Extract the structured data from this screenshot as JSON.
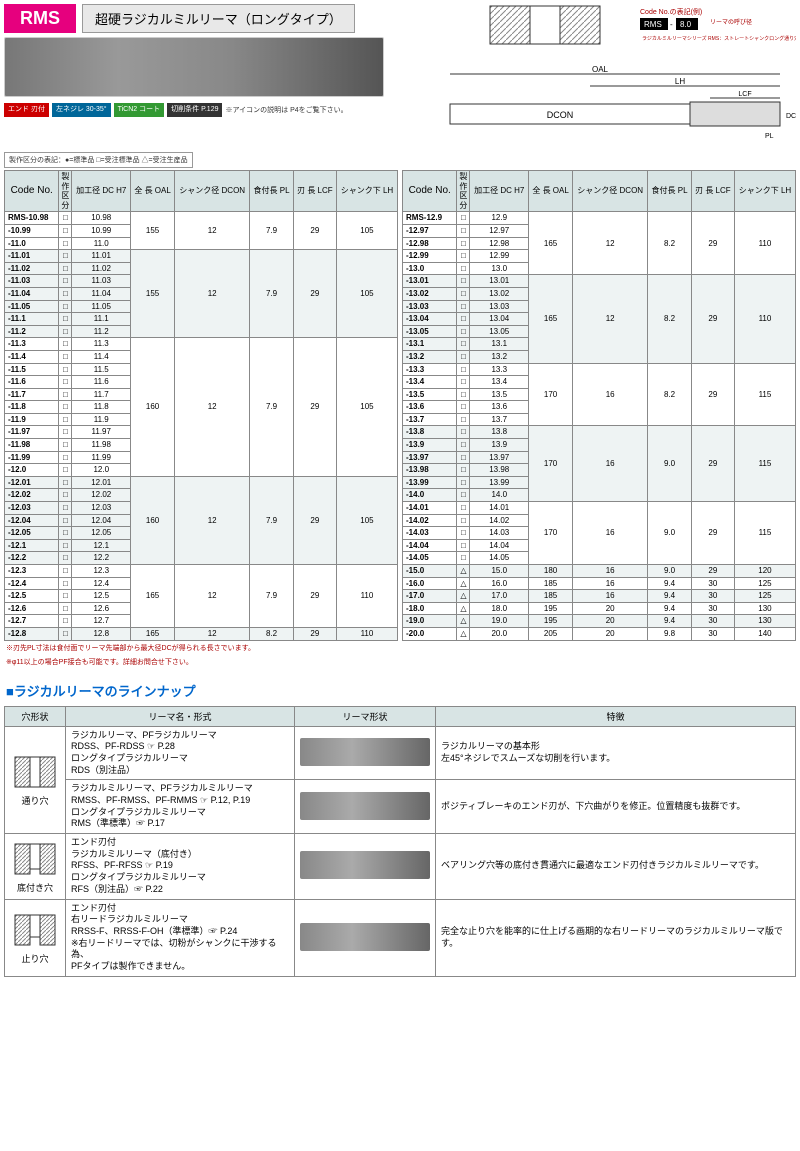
{
  "header": {
    "product_code": "RMS",
    "jp_title": "超硬ラジカルミルリーマ（ロングタイプ）",
    "badges": [
      {
        "label": "エンド\n刃付",
        "color": "#c00"
      },
      {
        "label": "左ネジレ\n30-35°",
        "color": "#069"
      },
      {
        "label": "TiCN2\nコート",
        "color": "#393"
      },
      {
        "label": "切削条件\nP.129",
        "color": "#333"
      }
    ],
    "badge_note": "※アイコンの説明は\nP4をご覧下さい。",
    "code_example_label": "Code No.の表記(例)",
    "code_example_rms": "RMS",
    "code_example_val": "8.0",
    "code_example_note1": "リーマの呼び径",
    "code_example_note2": "ラジカルミルリーマシリーズ\nRMS：ストレートシャンクロング通り穴用",
    "diagram_labels": {
      "oal": "OAL",
      "lh": "LH",
      "lcf": "LCF",
      "dcon": "DCON",
      "dc": "DC",
      "pl": "PL"
    }
  },
  "legend": "製作区分の表記：●=標準品 □=受注標準品 △=受注生産品",
  "table_headers": {
    "code": "Code No.",
    "kubun": "製作\n区分",
    "dc": "加工径\nDC H7",
    "oal": "全 長\nOAL",
    "dcon": "シャンク径\nDCON",
    "pl": "食付長\nPL",
    "lcf": "刃 長\nLCF",
    "lh": "シャンク下\nLH"
  },
  "table_left": [
    {
      "code": "RMS-10.98",
      "m": "□",
      "dc": "10.98",
      "g": 0
    },
    {
      "code": "-10.99",
      "m": "□",
      "dc": "10.99",
      "g": 0
    },
    {
      "code": "-11.0",
      "m": "□",
      "dc": "11.0",
      "g": 0
    },
    {
      "code": "-11.01",
      "m": "□",
      "dc": "11.01",
      "g": 1
    },
    {
      "code": "-11.02",
      "m": "□",
      "dc": "11.02",
      "g": 1
    },
    {
      "code": "-11.03",
      "m": "□",
      "dc": "11.03",
      "g": 1
    },
    {
      "code": "-11.04",
      "m": "□",
      "dc": "11.04",
      "g": 1
    },
    {
      "code": "-11.05",
      "m": "□",
      "dc": "11.05",
      "g": 1
    },
    {
      "code": "-11.1",
      "m": "□",
      "dc": "11.1",
      "g": 1
    },
    {
      "code": "-11.2",
      "m": "□",
      "dc": "11.2",
      "g": 1
    },
    {
      "code": "-11.3",
      "m": "□",
      "dc": "11.3",
      "g": 2
    },
    {
      "code": "-11.4",
      "m": "□",
      "dc": "11.4",
      "g": 2
    },
    {
      "code": "-11.5",
      "m": "□",
      "dc": "11.5",
      "g": 2
    },
    {
      "code": "-11.6",
      "m": "□",
      "dc": "11.6",
      "g": 2
    },
    {
      "code": "-11.7",
      "m": "□",
      "dc": "11.7",
      "g": 2
    },
    {
      "code": "-11.8",
      "m": "□",
      "dc": "11.8",
      "g": 2
    },
    {
      "code": "-11.9",
      "m": "□",
      "dc": "11.9",
      "g": 2
    },
    {
      "code": "-11.97",
      "m": "□",
      "dc": "11.97",
      "g": 2
    },
    {
      "code": "-11.98",
      "m": "□",
      "dc": "11.98",
      "g": 2
    },
    {
      "code": "-11.99",
      "m": "□",
      "dc": "11.99",
      "g": 2
    },
    {
      "code": "-12.0",
      "m": "□",
      "dc": "12.0",
      "g": 2
    },
    {
      "code": "-12.01",
      "m": "□",
      "dc": "12.01",
      "g": 3
    },
    {
      "code": "-12.02",
      "m": "□",
      "dc": "12.02",
      "g": 3
    },
    {
      "code": "-12.03",
      "m": "□",
      "dc": "12.03",
      "g": 3
    },
    {
      "code": "-12.04",
      "m": "□",
      "dc": "12.04",
      "g": 3
    },
    {
      "code": "-12.05",
      "m": "□",
      "dc": "12.05",
      "g": 3
    },
    {
      "code": "-12.1",
      "m": "□",
      "dc": "12.1",
      "g": 3
    },
    {
      "code": "-12.2",
      "m": "□",
      "dc": "12.2",
      "g": 3
    },
    {
      "code": "-12.3",
      "m": "□",
      "dc": "12.3",
      "g": 4
    },
    {
      "code": "-12.4",
      "m": "□",
      "dc": "12.4",
      "g": 4
    },
    {
      "code": "-12.5",
      "m": "□",
      "dc": "12.5",
      "g": 4
    },
    {
      "code": "-12.6",
      "m": "□",
      "dc": "12.6",
      "g": 4
    },
    {
      "code": "-12.7",
      "m": "□",
      "dc": "12.7",
      "g": 4
    },
    {
      "code": "-12.8",
      "m": "□",
      "dc": "12.8",
      "g": 5
    }
  ],
  "groups_left": [
    {
      "oal": "155",
      "dcon": "12",
      "pl": "7.9",
      "lcf": "29",
      "lh": "105",
      "span": 3,
      "alt": false
    },
    {
      "oal": "155",
      "dcon": "12",
      "pl": "7.9",
      "lcf": "29",
      "lh": "105",
      "span": 7,
      "alt": true
    },
    {
      "oal": "160",
      "dcon": "12",
      "pl": "7.9",
      "lcf": "29",
      "lh": "105",
      "span": 11,
      "alt": false
    },
    {
      "oal": "160",
      "dcon": "12",
      "pl": "7.9",
      "lcf": "29",
      "lh": "105",
      "span": 7,
      "alt": true
    },
    {
      "oal": "165",
      "dcon": "12",
      "pl": "7.9",
      "lcf": "29",
      "lh": "110",
      "span": 5,
      "alt": false
    },
    {
      "oal": "165",
      "dcon": "12",
      "pl": "8.2",
      "lcf": "29",
      "lh": "110",
      "span": 1,
      "alt": true
    }
  ],
  "table_right": [
    {
      "code": "RMS-12.9",
      "m": "□",
      "dc": "12.9",
      "g": 0
    },
    {
      "code": "-12.97",
      "m": "□",
      "dc": "12.97",
      "g": 0
    },
    {
      "code": "-12.98",
      "m": "□",
      "dc": "12.98",
      "g": 0
    },
    {
      "code": "-12.99",
      "m": "□",
      "dc": "12.99",
      "g": 0
    },
    {
      "code": "-13.0",
      "m": "□",
      "dc": "13.0",
      "g": 0
    },
    {
      "code": "-13.01",
      "m": "□",
      "dc": "13.01",
      "g": 1
    },
    {
      "code": "-13.02",
      "m": "□",
      "dc": "13.02",
      "g": 1
    },
    {
      "code": "-13.03",
      "m": "□",
      "dc": "13.03",
      "g": 1
    },
    {
      "code": "-13.04",
      "m": "□",
      "dc": "13.04",
      "g": 1
    },
    {
      "code": "-13.05",
      "m": "□",
      "dc": "13.05",
      "g": 1
    },
    {
      "code": "-13.1",
      "m": "□",
      "dc": "13.1",
      "g": 1
    },
    {
      "code": "-13.2",
      "m": "□",
      "dc": "13.2",
      "g": 1
    },
    {
      "code": "-13.3",
      "m": "□",
      "dc": "13.3",
      "g": 2
    },
    {
      "code": "-13.4",
      "m": "□",
      "dc": "13.4",
      "g": 2
    },
    {
      "code": "-13.5",
      "m": "□",
      "dc": "13.5",
      "g": 2
    },
    {
      "code": "-13.6",
      "m": "□",
      "dc": "13.6",
      "g": 2
    },
    {
      "code": "-13.7",
      "m": "□",
      "dc": "13.7",
      "g": 2
    },
    {
      "code": "-13.8",
      "m": "□",
      "dc": "13.8",
      "g": 3
    },
    {
      "code": "-13.9",
      "m": "□",
      "dc": "13.9",
      "g": 3
    },
    {
      "code": "-13.97",
      "m": "□",
      "dc": "13.97",
      "g": 3
    },
    {
      "code": "-13.98",
      "m": "□",
      "dc": "13.98",
      "g": 3
    },
    {
      "code": "-13.99",
      "m": "□",
      "dc": "13.99",
      "g": 3
    },
    {
      "code": "-14.0",
      "m": "□",
      "dc": "14.0",
      "g": 3
    },
    {
      "code": "-14.01",
      "m": "□",
      "dc": "14.01",
      "g": 4
    },
    {
      "code": "-14.02",
      "m": "□",
      "dc": "14.02",
      "g": 4
    },
    {
      "code": "-14.03",
      "m": "□",
      "dc": "14.03",
      "g": 4
    },
    {
      "code": "-14.04",
      "m": "□",
      "dc": "14.04",
      "g": 4
    },
    {
      "code": "-14.05",
      "m": "□",
      "dc": "14.05",
      "g": 4
    },
    {
      "code": "-15.0",
      "m": "△",
      "dc": "15.0",
      "g": 5
    },
    {
      "code": "-16.0",
      "m": "△",
      "dc": "16.0",
      "g": 6
    },
    {
      "code": "-17.0",
      "m": "△",
      "dc": "17.0",
      "g": 7
    },
    {
      "code": "-18.0",
      "m": "△",
      "dc": "18.0",
      "g": 8
    },
    {
      "code": "-19.0",
      "m": "△",
      "dc": "19.0",
      "g": 9
    },
    {
      "code": "-20.0",
      "m": "△",
      "dc": "20.0",
      "g": 10
    }
  ],
  "groups_right": [
    {
      "oal": "165",
      "dcon": "12",
      "pl": "8.2",
      "lcf": "29",
      "lh": "110",
      "span": 5,
      "alt": false
    },
    {
      "oal": "165",
      "dcon": "12",
      "pl": "8.2",
      "lcf": "29",
      "lh": "110",
      "span": 7,
      "alt": true
    },
    {
      "oal": "170",
      "dcon": "16",
      "pl": "8.2",
      "lcf": "29",
      "lh": "115",
      "span": 5,
      "alt": false
    },
    {
      "oal": "170",
      "dcon": "16",
      "pl": "9.0",
      "lcf": "29",
      "lh": "115",
      "span": 6,
      "alt": true
    },
    {
      "oal": "170",
      "dcon": "16",
      "pl": "9.0",
      "lcf": "29",
      "lh": "115",
      "span": 5,
      "alt": false
    },
    {
      "oal": "180",
      "dcon": "16",
      "pl": "9.0",
      "lcf": "29",
      "lh": "120",
      "span": 1,
      "alt": true
    },
    {
      "oal": "185",
      "dcon": "16",
      "pl": "9.4",
      "lcf": "30",
      "lh": "125",
      "span": 1,
      "alt": false
    },
    {
      "oal": "185",
      "dcon": "16",
      "pl": "9.4",
      "lcf": "30",
      "lh": "125",
      "span": 1,
      "alt": true
    },
    {
      "oal": "195",
      "dcon": "20",
      "pl": "9.4",
      "lcf": "30",
      "lh": "130",
      "span": 1,
      "alt": false
    },
    {
      "oal": "195",
      "dcon": "20",
      "pl": "9.4",
      "lcf": "30",
      "lh": "130",
      "span": 1,
      "alt": true
    },
    {
      "oal": "205",
      "dcon": "20",
      "pl": "9.8",
      "lcf": "30",
      "lh": "140",
      "span": 1,
      "alt": false
    }
  ],
  "footnotes": [
    "※刃先PL寸法は食付面でリーマ先端部から最大径DCが得られる長さでいます。",
    "※φ11以上の場合PF接合も可能です。詳細お問合せ下さい。"
  ],
  "lineup": {
    "title": "■ラジカルリーマのラインナップ",
    "headers": {
      "hole": "穴形状",
      "name": "リーマ名・形式",
      "shape": "リーマ形状",
      "feature": "特徴"
    },
    "rows": [
      {
        "hole": "通り穴",
        "span": 2,
        "items": [
          {
            "name": "ラジカルリーマ、PFラジカルリーマ\nRDSS、PF-RDSS ☞ P.28\nロングタイプラジカルリーマ\nRDS（別注品）",
            "feature": "ラジカルリーマの基本形\n左45°ネジレでスムーズな切削を行います。"
          },
          {
            "name": "ラジカルミルリーマ、PFラジカルミルリーマ\nRMSS、PF-RMSS、PF-RMMS ☞ P.12, P.19\nロングタイプラジカルミルリーマ\nRMS（準標準）☞ P.17",
            "feature": "ポジティブレーキのエンド刃が、下穴曲がりを修正。位置精度も抜群です。"
          }
        ]
      },
      {
        "hole": "底付き穴",
        "span": 1,
        "items": [
          {
            "name": "エンド刃付\nラジカルミルリーマ（底付き）\nRFSS、PF-RFSS ☞ P.19\nロングタイプラジカルミルリーマ\nRFS（別注品）☞ P.22",
            "feature": "ベアリング穴等の底付き貫通穴に最適なエンド刃付きラジカルミルリーマです。"
          }
        ]
      },
      {
        "hole": "止り穴",
        "span": 1,
        "items": [
          {
            "name": "エンド刃付\n右リードラジカルミルリーマ\nRRSS-F、RRSS-F-OH（準標準）☞ P.24\n※右リードリーマでは、切粉がシャンクに干渉する為、\n  PFタイプは製作できません。",
            "feature": "完全な止り穴を能率的に仕上げる画期的な右リードリーマのラジカルミルリーマ版です。"
          }
        ]
      }
    ]
  }
}
